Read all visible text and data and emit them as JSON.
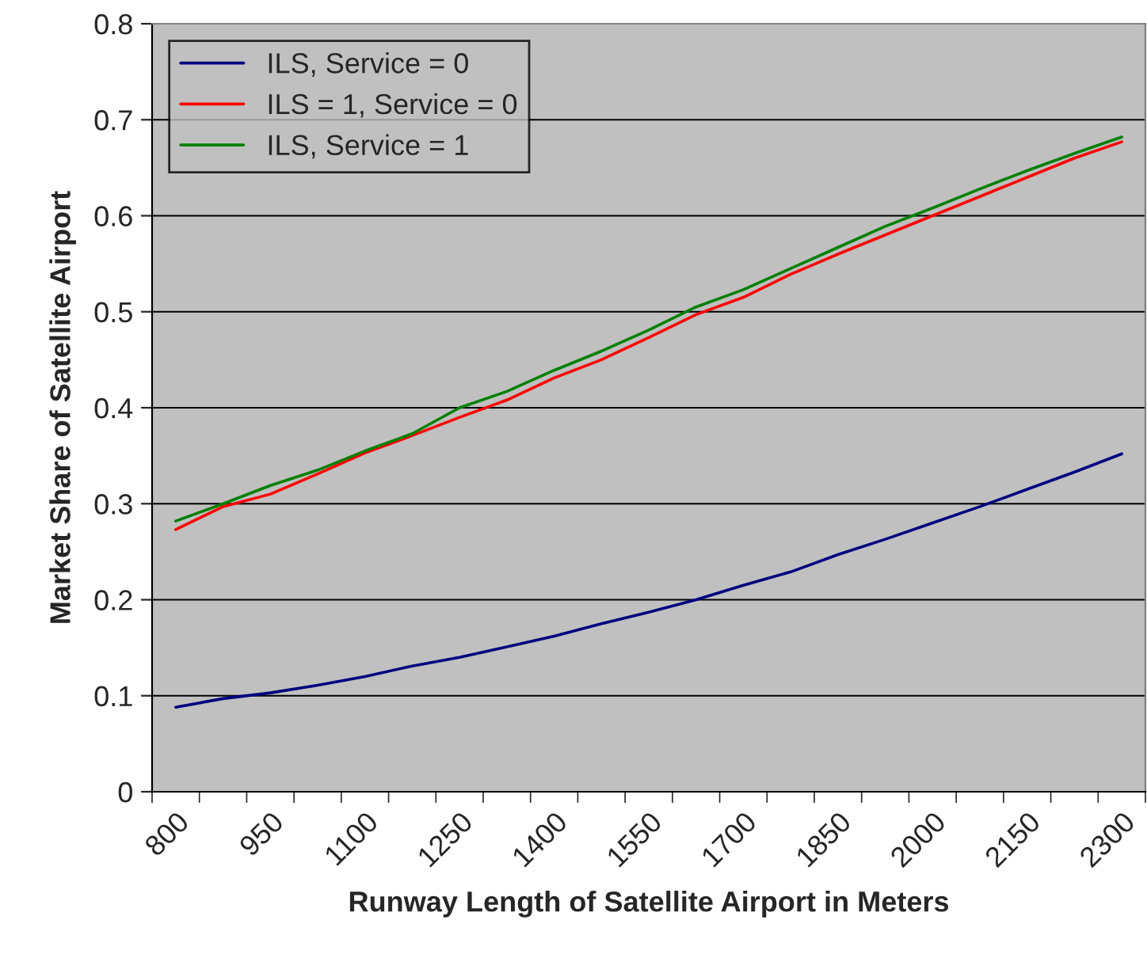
{
  "chart_data": {
    "type": "line",
    "xlabel": "Runway Length of Satellite Airport in Meters",
    "ylabel": "Market Share of Satellite Airport",
    "categories": [
      "800",
      null,
      "950",
      null,
      "1100",
      null,
      "1250",
      null,
      "1400",
      null,
      "1550",
      null,
      "1700",
      null,
      "1850",
      null,
      "2000",
      null,
      "2150",
      null,
      "2300"
    ],
    "series": [
      {
        "name": "ILS, Service = 0",
        "color": "#000080",
        "values": [
          0.088,
          0.097,
          0.103,
          0.111,
          0.12,
          0.131,
          0.14,
          0.151,
          0.162,
          0.175,
          0.187,
          0.2,
          0.215,
          0.229,
          0.247,
          0.263,
          0.28,
          0.297,
          0.315,
          0.333,
          0.352
        ]
      },
      {
        "name": "ILS = 1, Service = 0",
        "color": "#ff0000",
        "values": [
          0.273,
          0.297,
          0.31,
          0.331,
          0.353,
          0.371,
          0.39,
          0.408,
          0.431,
          0.45,
          0.473,
          0.497,
          0.515,
          0.539,
          0.56,
          0.58,
          0.6,
          0.62,
          0.64,
          0.66,
          0.677
        ]
      },
      {
        "name": "ILS, Service = 1",
        "color": "#008000",
        "values": [
          0.282,
          0.3,
          0.319,
          0.335,
          0.355,
          0.373,
          0.4,
          0.417,
          0.439,
          0.459,
          0.481,
          0.505,
          0.523,
          0.545,
          0.567,
          0.589,
          0.608,
          0.628,
          0.647,
          0.665,
          0.682
        ]
      }
    ],
    "ylim": [
      0,
      0.8
    ],
    "yticks": [
      0,
      0.1,
      0.2,
      0.3,
      0.4,
      0.5,
      0.6,
      0.7,
      0.8
    ],
    "grid": "y",
    "legend": "top left",
    "marker": "none",
    "line_style": "solid"
  }
}
